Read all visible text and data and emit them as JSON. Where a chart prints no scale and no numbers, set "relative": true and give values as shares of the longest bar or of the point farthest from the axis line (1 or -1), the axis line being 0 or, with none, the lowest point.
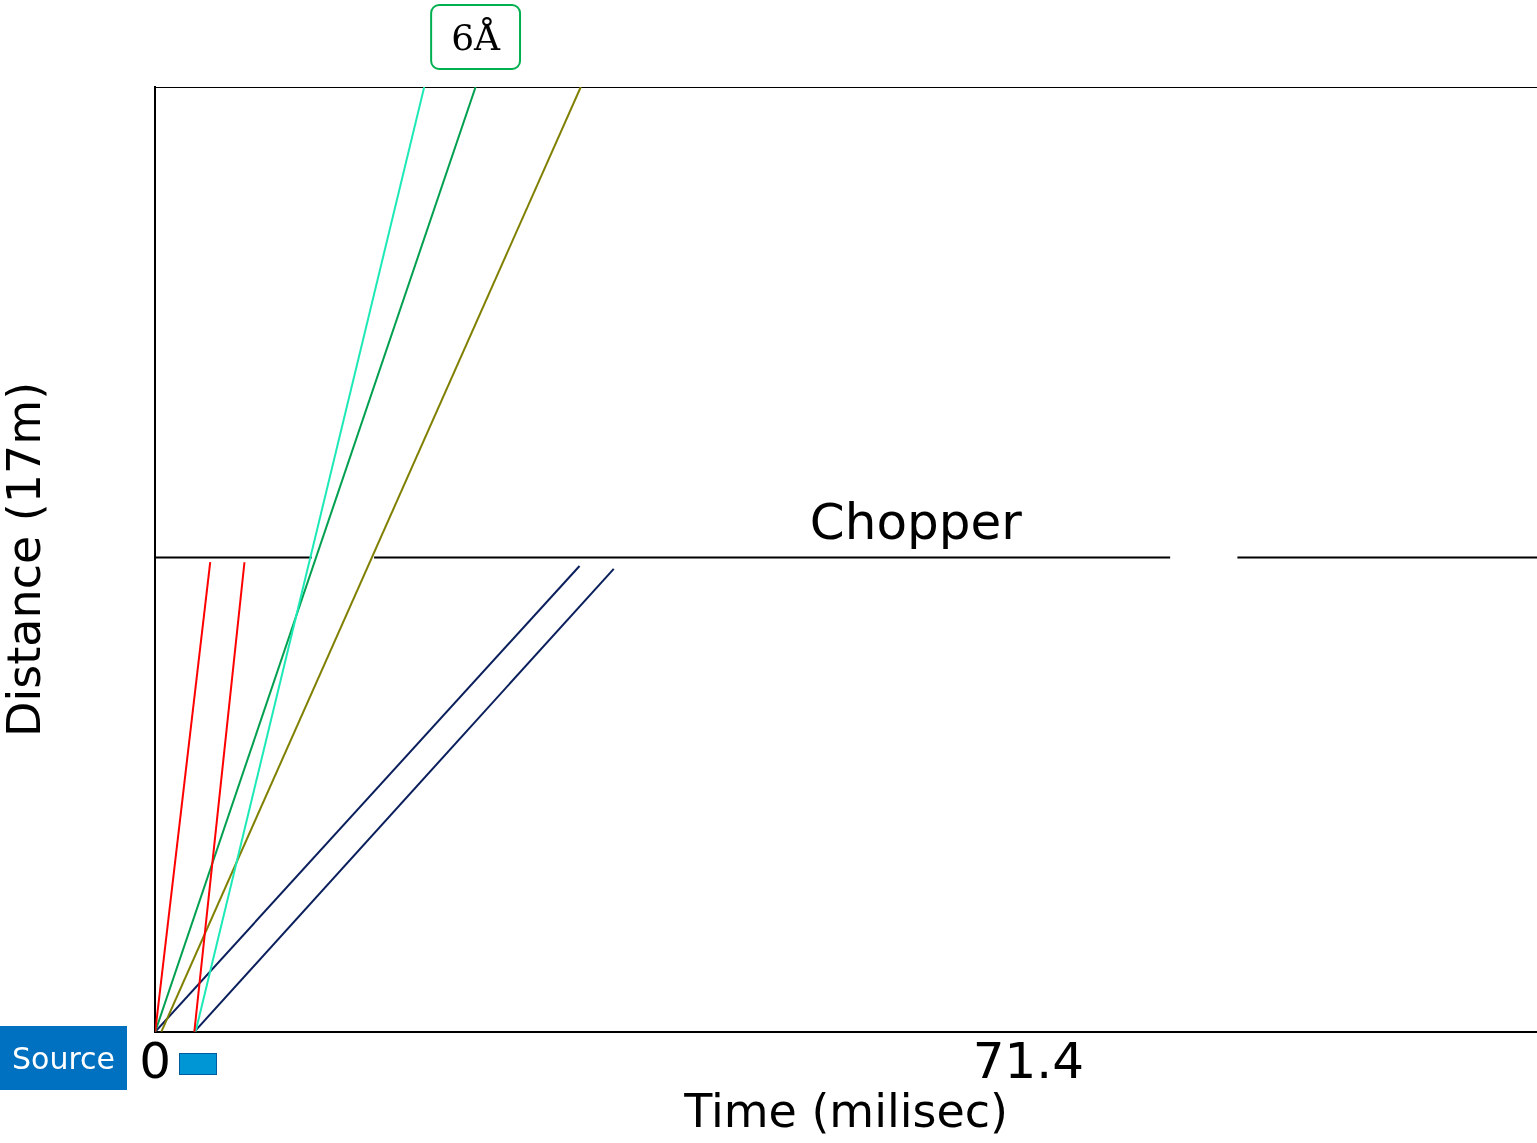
{
  "chart_data": {
    "type": "line",
    "relative": true,
    "xlabel": "Time (milisec)",
    "ylabel": "Distance (17m)",
    "xlim": [
      0,
      113
    ],
    "xticks": [
      0,
      71.4
    ],
    "grid": false,
    "legend": false,
    "marker": "none",
    "line_style": "solid",
    "series": [
      {
        "color": "#ff0000",
        "x": [
          0,
          4.5
        ],
        "values": [
          0,
          0.497
        ]
      },
      {
        "color": "#ff0000",
        "x": [
          3.2,
          7.3
        ],
        "values": [
          0,
          0.497
        ]
      },
      {
        "color": "#1de9b6",
        "x": [
          3.3,
          22.0
        ],
        "values": [
          0,
          1
        ]
      },
      {
        "color": "#00a050",
        "x": [
          0,
          26.2
        ],
        "values": [
          0,
          1
        ]
      },
      {
        "color": "#808000",
        "x": [
          0.5,
          34.8
        ],
        "values": [
          0,
          1
        ]
      },
      {
        "color": "#0a1f5c",
        "x": [
          0,
          34.7
        ],
        "values": [
          0,
          0.493
        ]
      },
      {
        "color": "#0a1f5c",
        "x": [
          3.2,
          37.5
        ],
        "values": [
          0,
          0.49
        ]
      },
      {
        "color": "#000000",
        "x": [
          0,
          12.8,
          null,
          17.9,
          83.0,
          null,
          88.5,
          113
        ],
        "values": [
          0.502,
          0.502,
          null,
          0.502,
          0.502,
          null,
          0.502,
          0.502
        ]
      },
      {
        "color": "#000000",
        "x": [
          0,
          113
        ],
        "values": [
          1,
          1
        ]
      }
    ],
    "annotations": [
      {
        "text": "6Å",
        "x": 26.2,
        "y": 1
      },
      {
        "text": "Chopper",
        "x": 62.2,
        "y": 0.502
      },
      "Source"
    ]
  }
}
